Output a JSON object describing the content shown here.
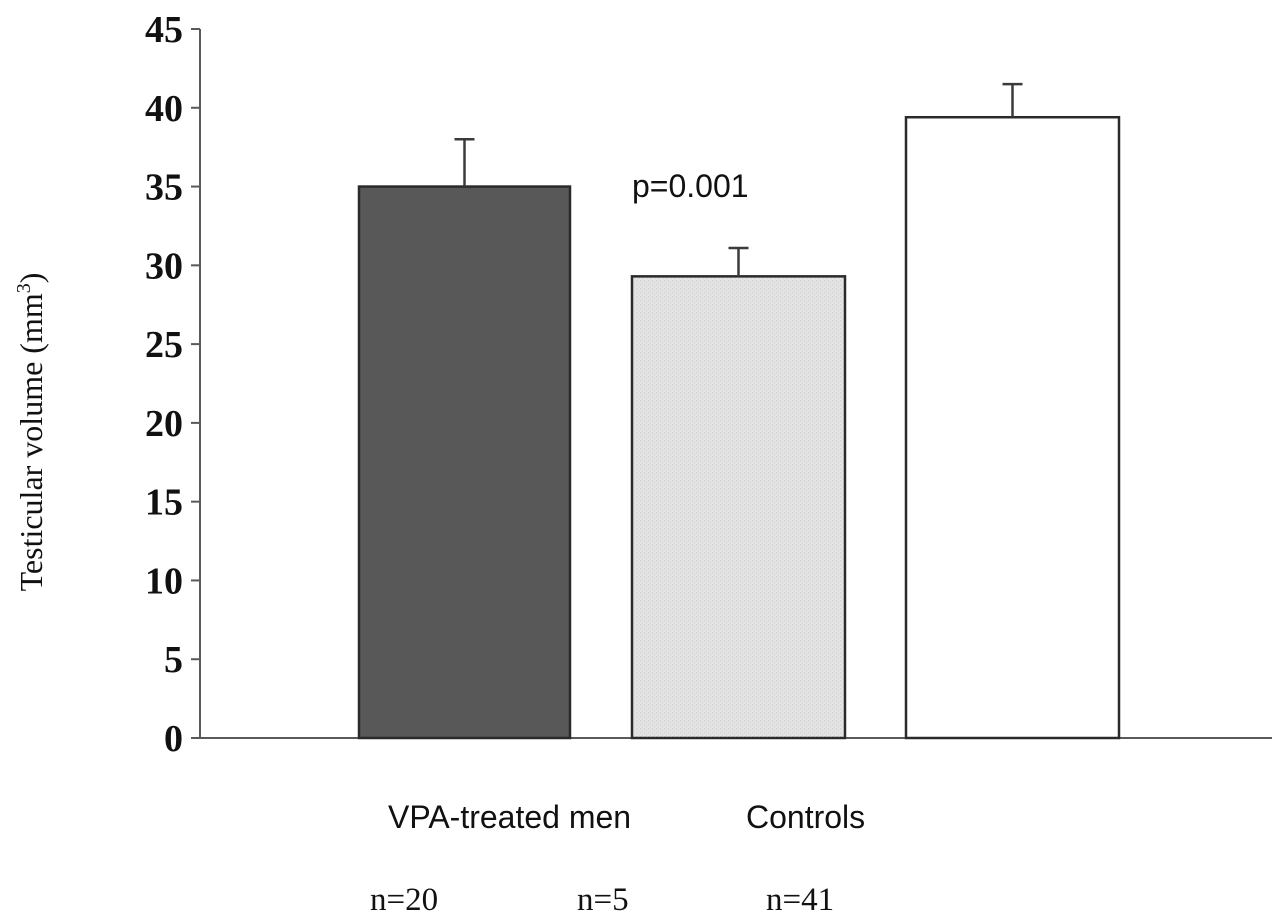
{
  "chart_data": {
    "type": "bar",
    "title": "",
    "xlabel": "",
    "ylabel": "Testicular volume (mm",
    "ylabel_superscript": "3",
    "ylabel_close": ")",
    "ylim": [
      0,
      45
    ],
    "yticks": [
      "0",
      "5",
      "10",
      "15",
      "20",
      "25",
      "30",
      "35",
      "40",
      "45"
    ],
    "bars": [
      {
        "name": "VPA-treated men (group 1)",
        "value": 35,
        "error": 3,
        "color": "#585858"
      },
      {
        "name": "VPA-treated men (group 2)",
        "value": 29.3,
        "error": 1.8,
        "color": "#e4e4e4"
      },
      {
        "name": "Controls",
        "value": 39.4,
        "error": 2.1,
        "color": "#ffffff"
      }
    ],
    "group_labels": [
      "VPA-treated men",
      "Controls"
    ],
    "n_labels": [
      "n=20",
      "n=5",
      "n=41"
    ],
    "annotation": "p=0.001"
  }
}
